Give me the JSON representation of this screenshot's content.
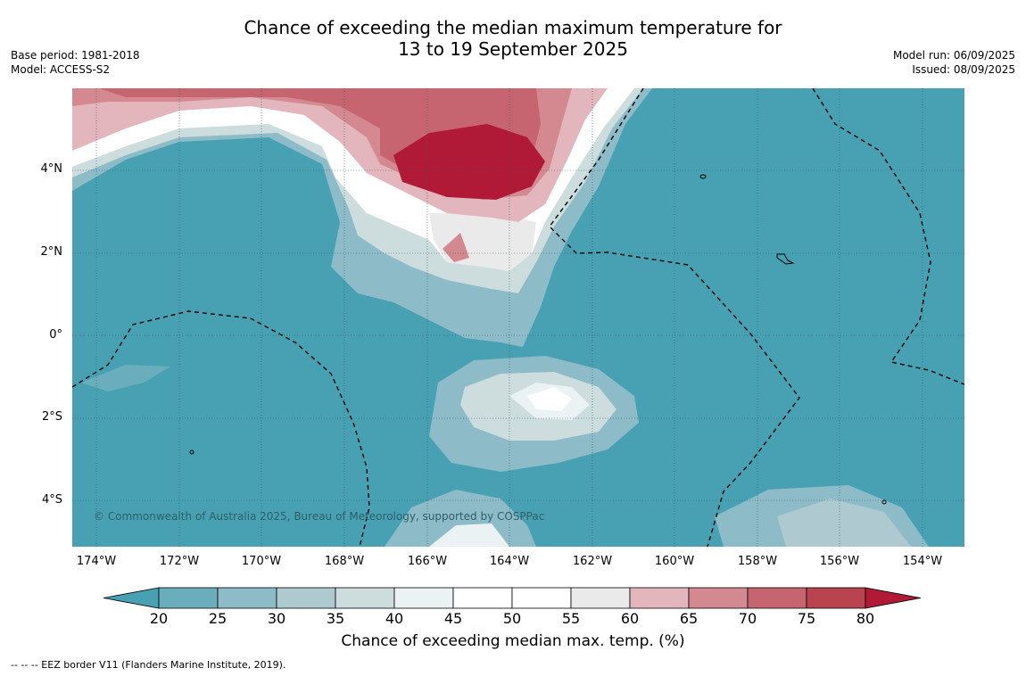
{
  "header": {
    "title_line1": "Chance of exceeding the median maximum temperature for",
    "title_line2": "13 to 19 September 2025",
    "base_period": "Base period: 1981-2018",
    "model": "Model: ACCESS-S2",
    "model_run": "Model run: 06/09/2025",
    "issued": "Issued: 08/09/2025"
  },
  "map": {
    "lat_labels": [
      "4°N",
      "2°N",
      "0°",
      "2°S",
      "4°S"
    ],
    "lon_labels": [
      "174°W",
      "172°W",
      "170°W",
      "168°W",
      "166°W",
      "164°W",
      "162°W",
      "160°W",
      "158°W",
      "156°W",
      "154°W"
    ],
    "copyright": "© Commonwealth of Australia 2025, Bureau of Meteorology, supported by COSPPac"
  },
  "colorbar": {
    "tick_labels": [
      "20",
      "25",
      "30",
      "35",
      "40",
      "45",
      "50",
      "55",
      "60",
      "65",
      "70",
      "75",
      "80"
    ],
    "colors": [
      "#48a1b2",
      "#6aaebd",
      "#8dbcc8",
      "#aecad0",
      "#cddcdd",
      "#eaf2f3",
      "#ffffff",
      "#ffffff",
      "#ebeaeb",
      "#e2b6bc",
      "#d48991",
      "#c66570",
      "#b9444f",
      "#b01a37"
    ],
    "title": "Chance of exceeding median max. temp. (%)"
  },
  "footnote": "-- -- -- EEZ border V11 (Flanders Marine Institute, 2019)."
}
